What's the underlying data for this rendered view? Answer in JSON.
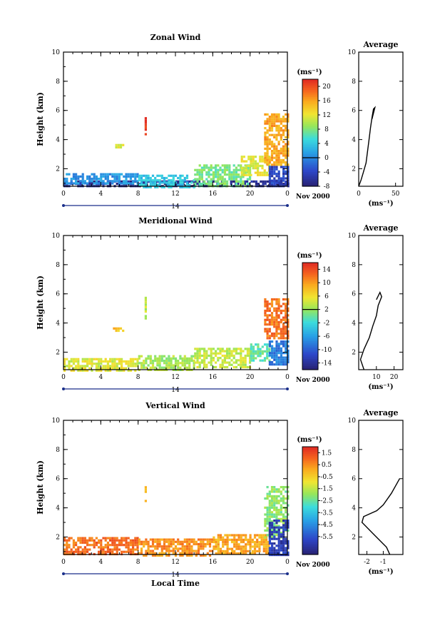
{
  "chart_data": [
    {
      "type": "heatmap",
      "title": "Zonal Wind",
      "ylabel": "Height (km)",
      "xlim": [
        0,
        24
      ],
      "ylim": [
        0.8,
        10
      ],
      "x_ticks": [
        "0",
        "4",
        "8",
        "12",
        "16",
        "20",
        "0"
      ],
      "y_ticks": [
        "2",
        "4",
        "6",
        "8",
        "10"
      ],
      "day_label": "14",
      "month_label": "Nov 2000",
      "colorbar": {
        "unit": "(ms⁻¹)",
        "range": [
          -8,
          22
        ],
        "ticks": [
          "20",
          "16",
          "12",
          "8",
          "4",
          "0",
          "-4",
          "-8"
        ],
        "contour_level": 0
      },
      "patches": [
        {
          "x": [
            0,
            24
          ],
          "y": [
            0.8,
            1.2
          ],
          "value": -6
        },
        {
          "x": [
            0,
            8
          ],
          "y": [
            1.0,
            1.7
          ],
          "value": 1
        },
        {
          "x": [
            8,
            14
          ],
          "y": [
            0.8,
            1.6
          ],
          "value": 4
        },
        {
          "x": [
            14,
            20
          ],
          "y": [
            0.8,
            2.3
          ],
          "value": 8
        },
        {
          "x": [
            19,
            22
          ],
          "y": [
            1.5,
            2.9
          ],
          "value": 12
        },
        {
          "x": [
            22,
            24
          ],
          "y": [
            0.8,
            2.2
          ],
          "value": -4
        },
        {
          "x": [
            21.5,
            24
          ],
          "y": [
            2.2,
            5.8
          ],
          "value": 16
        },
        {
          "x": [
            8.7,
            8.9
          ],
          "y": [
            4.3,
            5.7
          ],
          "value": 21
        },
        {
          "x": [
            5.3,
            6.5
          ],
          "y": [
            3.4,
            3.7
          ],
          "value": 12
        }
      ],
      "average_profile": {
        "title": "Average",
        "xlim": [
          0,
          60
        ],
        "x_ticks": [
          "0",
          "50"
        ],
        "xlabel": "(ms⁻¹)",
        "points": [
          [
            0,
            0.8
          ],
          [
            3,
            1.2
          ],
          [
            6,
            1.7
          ],
          [
            10,
            2.4
          ],
          [
            12,
            3.2
          ],
          [
            14,
            4.0
          ],
          [
            16,
            4.8
          ],
          [
            18,
            5.5
          ],
          [
            20,
            6.1
          ],
          [
            22,
            6.2
          ],
          [
            18,
            5.4
          ]
        ]
      }
    },
    {
      "type": "heatmap",
      "title": "Meridional Wind",
      "ylabel": "Height (km)",
      "xlim": [
        0,
        24
      ],
      "ylim": [
        0.8,
        10
      ],
      "x_ticks": [
        "0",
        "4",
        "8",
        "12",
        "16",
        "20",
        "0"
      ],
      "y_ticks": [
        "2",
        "4",
        "6",
        "8",
        "10"
      ],
      "day_label": "14",
      "month_label": "Nov 2000",
      "colorbar": {
        "unit": "(ms⁻¹)",
        "range": [
          -16,
          16
        ],
        "ticks": [
          "14",
          "10",
          "6",
          "2",
          "-2",
          "-6",
          "-10",
          "-14"
        ],
        "contour_level": 2
      },
      "patches": [
        {
          "x": [
            0,
            8
          ],
          "y": [
            0.8,
            1.6
          ],
          "value": 5
        },
        {
          "x": [
            8,
            14
          ],
          "y": [
            0.8,
            1.8
          ],
          "value": 3
        },
        {
          "x": [
            14,
            20
          ],
          "y": [
            1.0,
            2.3
          ],
          "value": 4
        },
        {
          "x": [
            20,
            22
          ],
          "y": [
            1.4,
            2.6
          ],
          "value": 0
        },
        {
          "x": [
            22,
            24
          ],
          "y": [
            1.2,
            2.8
          ],
          "value": -8
        },
        {
          "x": [
            21.5,
            24
          ],
          "y": [
            3.0,
            5.7
          ],
          "value": 12
        },
        {
          "x": [
            8.7,
            8.9
          ],
          "y": [
            4.3,
            5.8
          ],
          "value": 4
        },
        {
          "x": [
            5.3,
            6.5
          ],
          "y": [
            3.4,
            3.7
          ],
          "value": 8
        }
      ],
      "average_profile": {
        "title": "Average",
        "xlim": [
          0,
          25
        ],
        "x_ticks": [
          "10",
          "20"
        ],
        "xlabel": "(ms⁻¹)",
        "points": [
          [
            3,
            0.8
          ],
          [
            1,
            1.5
          ],
          [
            3,
            2.2
          ],
          [
            6,
            3.0
          ],
          [
            8,
            3.8
          ],
          [
            10,
            4.5
          ],
          [
            11,
            5.2
          ],
          [
            13,
            5.8
          ],
          [
            12,
            6.1
          ],
          [
            10,
            5.6
          ]
        ]
      }
    },
    {
      "type": "heatmap",
      "title": "Vertical Wind",
      "ylabel": "Height (km)",
      "xlabel": "Local Time",
      "xlim": [
        0,
        24
      ],
      "ylim": [
        0.8,
        10
      ],
      "x_ticks": [
        "0",
        "4",
        "8",
        "12",
        "16",
        "20",
        "0"
      ],
      "y_ticks": [
        "2",
        "4",
        "6",
        "8",
        "10"
      ],
      "day_label": "14",
      "month_label": "Nov 2000",
      "colorbar": {
        "unit": "(ms⁻¹)",
        "range": [
          -7,
          2
        ],
        "ticks": [
          "1.5",
          "0.5",
          "-0.5",
          "-1.5",
          "-2.5",
          "-3.5",
          "-4.5",
          "-5.5"
        ],
        "contour_level": null
      },
      "patches": [
        {
          "x": [
            0,
            8
          ],
          "y": [
            0.8,
            2.0
          ],
          "value": 1.0
        },
        {
          "x": [
            8,
            16
          ],
          "y": [
            0.8,
            1.9
          ],
          "value": 0.5
        },
        {
          "x": [
            16,
            22
          ],
          "y": [
            0.8,
            2.2
          ],
          "value": 0.2
        },
        {
          "x": [
            21.5,
            24
          ],
          "y": [
            2.0,
            5.5
          ],
          "value": -2.0
        },
        {
          "x": [
            22,
            24
          ],
          "y": [
            0.8,
            3.2
          ],
          "value": -6.0
        },
        {
          "x": [
            8.7,
            8.9
          ],
          "y": [
            4.5,
            5.8
          ],
          "value": 0.0
        }
      ],
      "average_profile": {
        "title": "Average",
        "xlim": [
          -2.5,
          0.2
        ],
        "x_ticks": [
          "-2",
          "-1"
        ],
        "xlabel": "(ms⁻¹)",
        "points": [
          [
            -0.6,
            0.8
          ],
          [
            -0.8,
            1.3
          ],
          [
            -1.6,
            2.2
          ],
          [
            -2.3,
            3.0
          ],
          [
            -2.2,
            3.4
          ],
          [
            -1.4,
            3.8
          ],
          [
            -1.0,
            4.2
          ],
          [
            -0.5,
            5.0
          ],
          [
            0.0,
            6.0
          ]
        ]
      }
    }
  ]
}
